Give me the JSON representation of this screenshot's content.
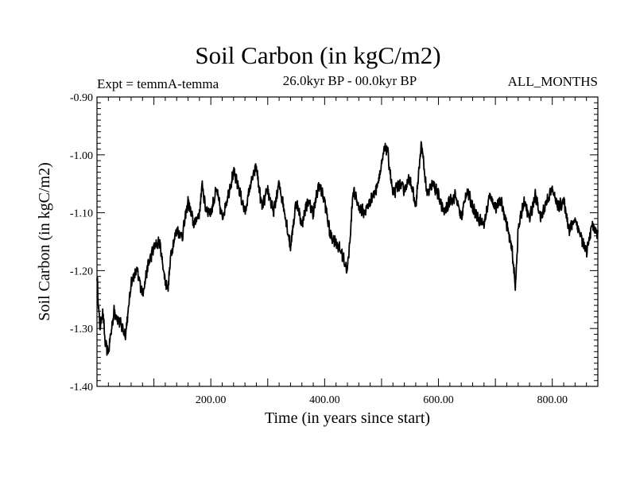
{
  "chart_data": {
    "type": "line",
    "title": "Soil Carbon (in kgC/m2)",
    "subtitle_left": "Expt = temmA-temma",
    "subtitle_center": "26.0kyr BP - 00.0kyr BP",
    "subtitle_right": "ALL_MONTHS",
    "xlabel": "Time (in years since start)",
    "ylabel": "Soil Carbon (in kgC/m2)",
    "xlim": [
      0,
      880
    ],
    "ylim": [
      -1.4,
      -0.9
    ],
    "x_ticks": [
      200,
      400,
      600,
      800
    ],
    "x_tick_labels": [
      "200.00",
      "400.00",
      "600.00",
      "800.00"
    ],
    "y_ticks": [
      -0.9,
      -1.0,
      -1.1,
      -1.2,
      -1.3,
      -1.4
    ],
    "y_tick_labels": [
      "-0.90",
      "-1.00",
      "-1.10",
      "-1.20",
      "-1.30",
      "-1.40"
    ],
    "grid": false,
    "series": [
      {
        "name": "Soil Carbon",
        "color": "#000000",
        "x": [
          0,
          5,
          10,
          15,
          20,
          30,
          40,
          50,
          55,
          60,
          70,
          80,
          90,
          100,
          110,
          120,
          125,
          130,
          140,
          150,
          160,
          170,
          180,
          185,
          190,
          200,
          210,
          220,
          230,
          240,
          250,
          260,
          270,
          280,
          285,
          290,
          300,
          310,
          320,
          330,
          340,
          350,
          360,
          370,
          380,
          390,
          400,
          410,
          420,
          430,
          440,
          445,
          450,
          460,
          470,
          480,
          490,
          500,
          505,
          510,
          520,
          530,
          540,
          550,
          560,
          570,
          580,
          590,
          600,
          610,
          620,
          630,
          640,
          650,
          660,
          670,
          680,
          690,
          700,
          710,
          720,
          730,
          735,
          740,
          750,
          760,
          770,
          780,
          790,
          800,
          810,
          820,
          830,
          840,
          850,
          860,
          870,
          880
        ],
        "values": [
          -1.21,
          -1.3,
          -1.27,
          -1.33,
          -1.34,
          -1.27,
          -1.29,
          -1.31,
          -1.27,
          -1.22,
          -1.2,
          -1.24,
          -1.19,
          -1.16,
          -1.15,
          -1.22,
          -1.23,
          -1.17,
          -1.13,
          -1.14,
          -1.08,
          -1.12,
          -1.1,
          -1.05,
          -1.09,
          -1.1,
          -1.06,
          -1.11,
          -1.07,
          -1.03,
          -1.06,
          -1.1,
          -1.05,
          -1.02,
          -1.06,
          -1.09,
          -1.06,
          -1.1,
          -1.05,
          -1.1,
          -1.16,
          -1.08,
          -1.12,
          -1.08,
          -1.1,
          -1.05,
          -1.08,
          -1.14,
          -1.15,
          -1.17,
          -1.2,
          -1.14,
          -1.06,
          -1.09,
          -1.1,
          -1.08,
          -1.06,
          -1.02,
          -0.99,
          -0.99,
          -1.07,
          -1.05,
          -1.06,
          -1.04,
          -1.09,
          -0.98,
          -1.07,
          -1.05,
          -1.07,
          -1.1,
          -1.08,
          -1.07,
          -1.11,
          -1.06,
          -1.09,
          -1.11,
          -1.12,
          -1.07,
          -1.09,
          -1.08,
          -1.12,
          -1.17,
          -1.23,
          -1.13,
          -1.08,
          -1.11,
          -1.07,
          -1.11,
          -1.08,
          -1.06,
          -1.09,
          -1.08,
          -1.13,
          -1.11,
          -1.14,
          -1.17,
          -1.12,
          -1.14
        ]
      }
    ]
  }
}
